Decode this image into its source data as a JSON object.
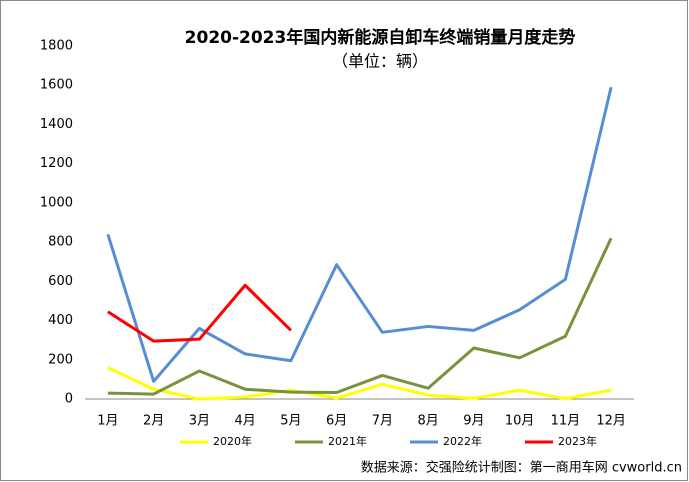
{
  "chart_data": {
    "type": "line",
    "title": "2020-2023年国内新能源自卸车终端销量月度走势",
    "subtitle": "（单位：辆）",
    "source": "数据来源：交强险统计制图：第一商用车网 cvworld.cn",
    "categories": [
      "1月",
      "2月",
      "3月",
      "4月",
      "5月",
      "6月",
      "7月",
      "8月",
      "9月",
      "10月",
      "11月",
      "12月"
    ],
    "series": [
      {
        "name": "2020年",
        "color": "#ffff00",
        "values": [
          160,
          50,
          0,
          10,
          45,
          5,
          75,
          20,
          3,
          45,
          2,
          45
        ]
      },
      {
        "name": "2021年",
        "color": "#77933c",
        "values": [
          30,
          25,
          143,
          50,
          35,
          33,
          120,
          55,
          260,
          210,
          320,
          820
        ]
      },
      {
        "name": "2022年",
        "color": "#558ed5",
        "values": [
          840,
          90,
          360,
          230,
          195,
          685,
          340,
          370,
          350,
          455,
          610,
          1590
        ]
      },
      {
        "name": "2023年",
        "color": "#ff0000",
        "values": [
          445,
          295,
          305,
          580,
          350,
          null,
          null,
          null,
          null,
          null,
          null,
          null
        ]
      }
    ],
    "ylim": [
      0,
      1800
    ],
    "yticks": [
      0,
      200,
      400,
      600,
      800,
      1000,
      1200,
      1400,
      1600,
      1800
    ],
    "grid": false,
    "legend": "bottom"
  }
}
